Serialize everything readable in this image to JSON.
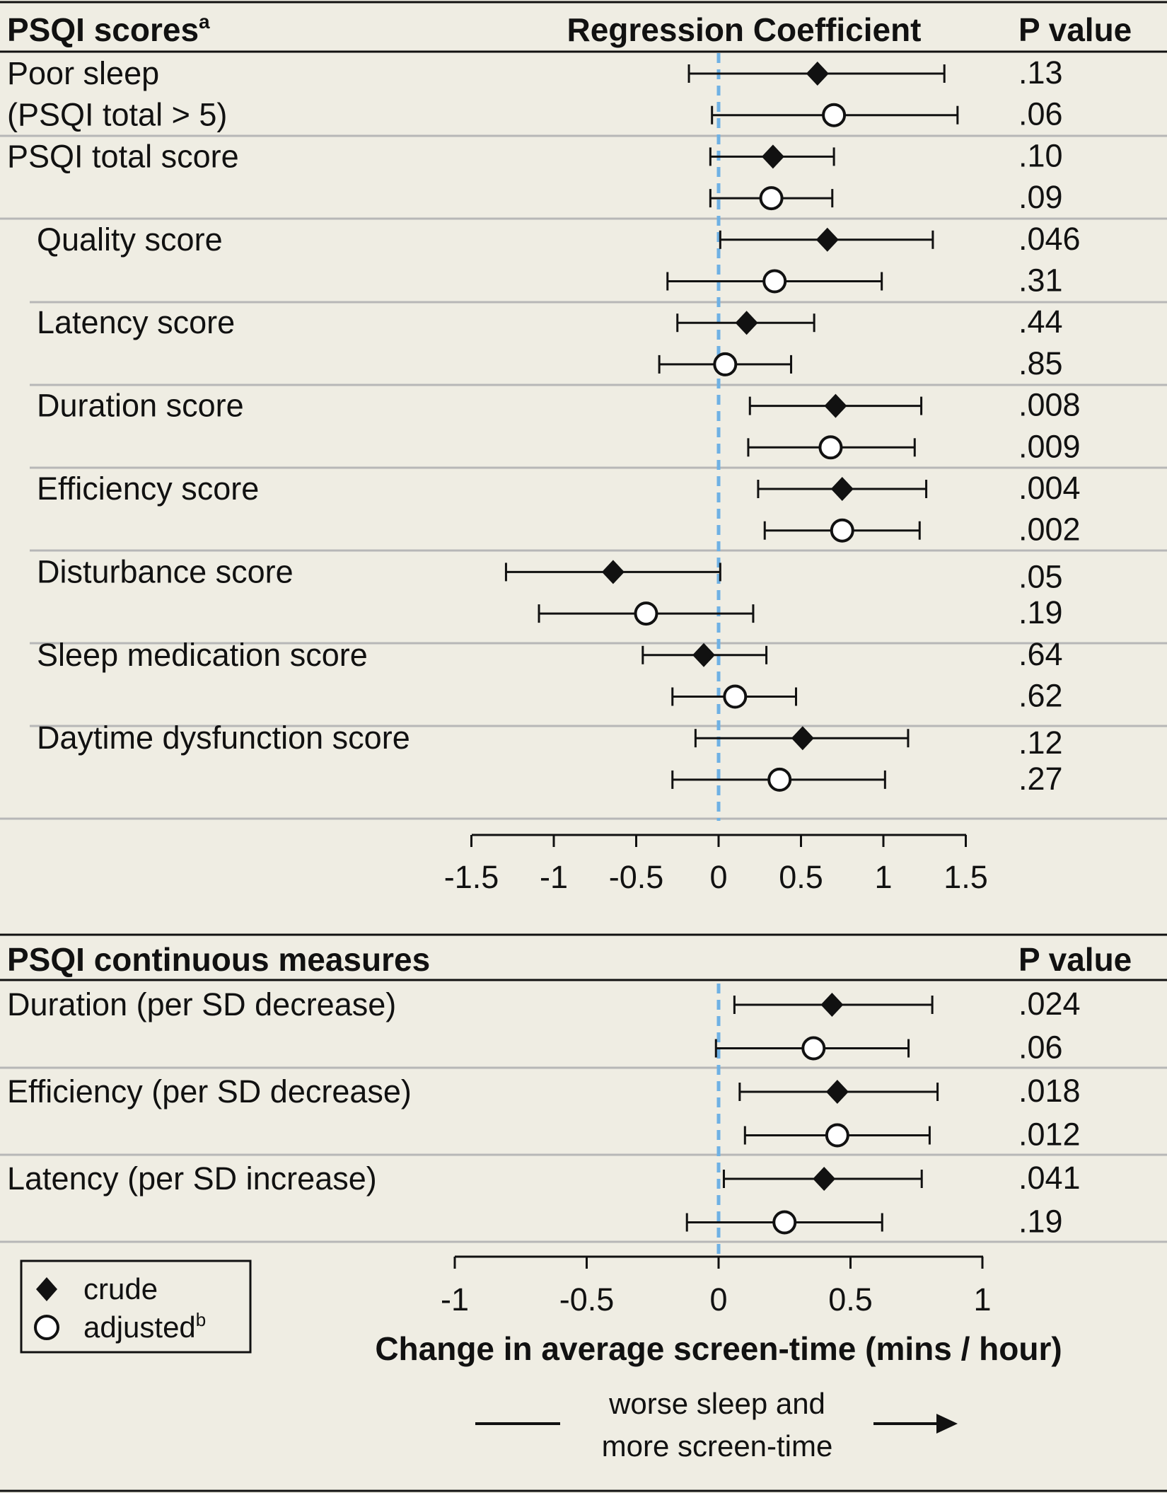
{
  "chart_data": [
    {
      "type": "forest",
      "column_headers": {
        "label": "PSQI scores",
        "label_superscript": "a",
        "estimate": "Regression Coefficient",
        "p": "P value"
      },
      "xlim": [
        -1.5,
        1.5
      ],
      "xticks": [
        "-1.5",
        "-1",
        "-0.5",
        "0",
        "0.5",
        "1",
        "1.5"
      ],
      "reference_line": 0,
      "label_lines": [
        {
          "text": "Poor sleep",
          "indent": false,
          "row": 0
        },
        {
          "text": "(PSQI total > 5)",
          "indent": false,
          "row": 1
        },
        {
          "text": "PSQI total score",
          "indent": false,
          "row": 2
        },
        {
          "text": "Quality score",
          "indent": true,
          "row": 4
        },
        {
          "text": "Latency score",
          "indent": true,
          "row": 6
        },
        {
          "text": "Duration score",
          "indent": true,
          "row": 8
        },
        {
          "text": "Efficiency score",
          "indent": true,
          "row": 10
        },
        {
          "text": "Disturbance score",
          "indent": true,
          "row": 12
        },
        {
          "text": "Sleep medication score",
          "indent": true,
          "row": 14
        },
        {
          "text": "Daytime dysfunction score",
          "indent": true,
          "row": 16
        }
      ],
      "rows": [
        {
          "series": "crude",
          "estimate": 0.6,
          "lower": -0.18,
          "upper": 1.37,
          "p": ".13"
        },
        {
          "series": "adjusted",
          "estimate": 0.7,
          "lower": -0.04,
          "upper": 1.45,
          "p": ".06"
        },
        {
          "series": "crude",
          "estimate": 0.33,
          "lower": -0.05,
          "upper": 0.7,
          "p": ".10"
        },
        {
          "series": "adjusted",
          "estimate": 0.32,
          "lower": -0.05,
          "upper": 0.69,
          "p": ".09"
        },
        {
          "series": "crude",
          "estimate": 0.66,
          "lower": 0.01,
          "upper": 1.3,
          "p": ".046"
        },
        {
          "series": "adjusted",
          "estimate": 0.34,
          "lower": -0.31,
          "upper": 0.99,
          "p": ".31"
        },
        {
          "series": "crude",
          "estimate": 0.17,
          "lower": -0.25,
          "upper": 0.58,
          "p": ".44"
        },
        {
          "series": "adjusted",
          "estimate": 0.04,
          "lower": -0.36,
          "upper": 0.44,
          "p": ".85"
        },
        {
          "series": "crude",
          "estimate": 0.71,
          "lower": 0.19,
          "upper": 1.23,
          "p": ".008"
        },
        {
          "series": "adjusted",
          "estimate": 0.68,
          "lower": 0.18,
          "upper": 1.19,
          "p": ".009"
        },
        {
          "series": "crude",
          "estimate": 0.75,
          "lower": 0.24,
          "upper": 1.26,
          "p": ".004"
        },
        {
          "series": "adjusted",
          "estimate": 0.75,
          "lower": 0.28,
          "upper": 1.22,
          "p": ".002"
        },
        {
          "series": "crude",
          "estimate": -0.64,
          "lower": -1.29,
          "upper": 0.01,
          "p": ".05"
        },
        {
          "series": "adjusted",
          "estimate": -0.44,
          "lower": -1.09,
          "upper": 0.21,
          "p": ".19"
        },
        {
          "series": "crude",
          "estimate": -0.09,
          "lower": -0.46,
          "upper": 0.29,
          "p": ".64"
        },
        {
          "series": "adjusted",
          "estimate": 0.1,
          "lower": -0.28,
          "upper": 0.47,
          "p": ".62"
        },
        {
          "series": "crude",
          "estimate": 0.51,
          "lower": -0.14,
          "upper": 1.15,
          "p": ".12"
        },
        {
          "series": "adjusted",
          "estimate": 0.37,
          "lower": -0.28,
          "upper": 1.01,
          "p": ".27"
        }
      ]
    },
    {
      "type": "forest",
      "column_headers": {
        "label": "PSQI continuous measures",
        "p": "P value"
      },
      "xlim": [
        -1,
        1
      ],
      "xticks": [
        "-1",
        "-0.5",
        "0",
        "0.5",
        "1"
      ],
      "reference_line": 0,
      "label_lines": [
        {
          "text": "Duration (per SD decrease)",
          "indent": false,
          "row": 0
        },
        {
          "text": "Efficiency (per SD decrease)",
          "indent": false,
          "row": 2
        },
        {
          "text": "Latency (per SD increase)",
          "indent": false,
          "row": 4
        }
      ],
      "rows": [
        {
          "series": "crude",
          "estimate": 0.43,
          "lower": 0.06,
          "upper": 0.81,
          "p": ".024"
        },
        {
          "series": "adjusted",
          "estimate": 0.36,
          "lower": -0.01,
          "upper": 0.72,
          "p": ".06"
        },
        {
          "series": "crude",
          "estimate": 0.45,
          "lower": 0.08,
          "upper": 0.83,
          "p": ".018"
        },
        {
          "series": "adjusted",
          "estimate": 0.45,
          "lower": 0.1,
          "upper": 0.8,
          "p": ".012"
        },
        {
          "series": "crude",
          "estimate": 0.4,
          "lower": 0.02,
          "upper": 0.77,
          "p": ".041"
        },
        {
          "series": "adjusted",
          "estimate": 0.25,
          "lower": -0.12,
          "upper": 0.62,
          "p": ".19"
        }
      ]
    }
  ],
  "xlabel": "Change in average screen-time (mins / hour)",
  "legend": {
    "placement": "bottom-left",
    "items": [
      {
        "label": "crude",
        "marker": "filled-diamond"
      },
      {
        "label": "adjusted",
        "superscript": "b",
        "marker": "open-circle"
      }
    ]
  },
  "direction_note": {
    "lines": [
      "worse sleep and",
      "more screen-time"
    ]
  },
  "colors": {
    "background": "#efede3",
    "ink": "#111111",
    "reference_line": "#6fb1e4",
    "row_divider": "#b7b7b7"
  }
}
